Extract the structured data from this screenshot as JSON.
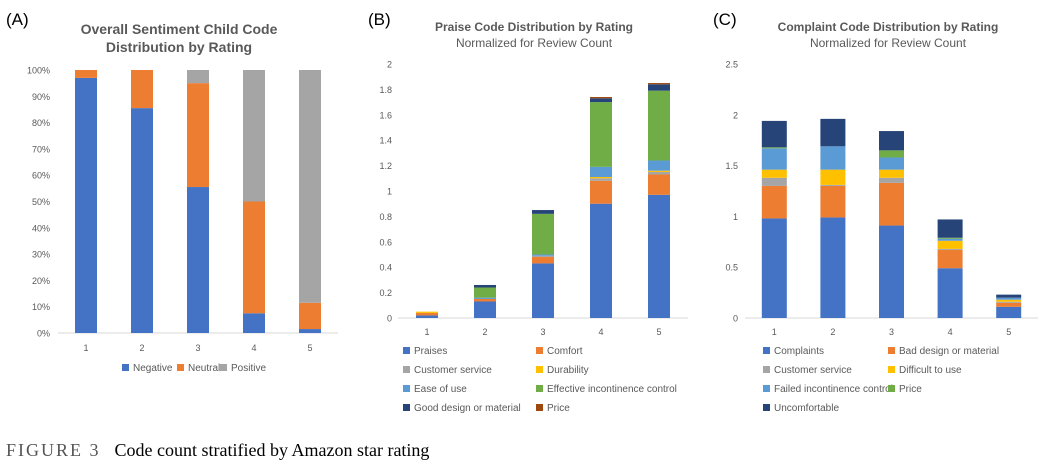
{
  "caption": {
    "figure_label": "FIGURE 3",
    "text": "Code count stratified by Amazon star rating"
  },
  "chart_data": [
    {
      "panel_label": "(A)",
      "type": "bar",
      "stacked": true,
      "title": "Overall Sentiment Child Code",
      "title_line2": "Distribution by Rating",
      "subtitle": "",
      "categories": [
        "1",
        "2",
        "3",
        "4",
        "5"
      ],
      "ylim": [
        0,
        100
      ],
      "yticks": [
        0,
        10,
        20,
        30,
        40,
        50,
        60,
        70,
        80,
        90,
        100
      ],
      "ytick_labels": [
        "0%",
        "10%",
        "20%",
        "30%",
        "40%",
        "50%",
        "60%",
        "70%",
        "80%",
        "90%",
        "100%"
      ],
      "grid": false,
      "legend_position": "bottom",
      "series": [
        {
          "name": "Negative",
          "color": "#4472C4",
          "values": [
            97,
            85.5,
            55.5,
            7.5,
            1.5
          ]
        },
        {
          "name": "Neutral",
          "color": "#ED7D31",
          "values": [
            3,
            14.5,
            39.5,
            42.5,
            10
          ]
        },
        {
          "name": "Positive",
          "color": "#A5A5A5",
          "values": [
            0,
            0,
            5,
            50,
            88.5
          ]
        }
      ]
    },
    {
      "panel_label": "(B)",
      "type": "bar",
      "stacked": true,
      "title": "Praise Code Distribution by Rating",
      "subtitle": "Normalized for Review Count",
      "categories": [
        "1",
        "2",
        "3",
        "4",
        "5"
      ],
      "ylim": [
        0,
        2
      ],
      "yticks": [
        0,
        0.2,
        0.4,
        0.6,
        0.8,
        1,
        1.2,
        1.4,
        1.6,
        1.8,
        2
      ],
      "ytick_labels": [
        "0",
        "0.2",
        "0.4",
        "0.6",
        "0.8",
        "1",
        "1.2",
        "1.4",
        "1.6",
        "1.8",
        "2"
      ],
      "grid": false,
      "legend_position": "bottom",
      "series": [
        {
          "name": "Praises",
          "color": "#4472C4",
          "values": [
            0.02,
            0.13,
            0.43,
            0.9,
            0.97
          ]
        },
        {
          "name": "Comfort",
          "color": "#ED7D31",
          "values": [
            0.02,
            0.02,
            0.05,
            0.18,
            0.16
          ]
        },
        {
          "name": "Customer service",
          "color": "#A5A5A5",
          "values": [
            0,
            0,
            0.01,
            0.02,
            0.02
          ]
        },
        {
          "name": "Durability",
          "color": "#FFC000",
          "values": [
            0.01,
            0,
            0,
            0.01,
            0.01
          ]
        },
        {
          "name": "Ease of use",
          "color": "#5B9BD5",
          "values": [
            0,
            0.01,
            0.01,
            0.08,
            0.08
          ]
        },
        {
          "name": "Effective incontinence control",
          "color": "#70AD47",
          "values": [
            0,
            0.08,
            0.32,
            0.51,
            0.55
          ]
        },
        {
          "name": "Good design or material",
          "color": "#264478",
          "values": [
            0,
            0.02,
            0.03,
            0.03,
            0.05
          ]
        },
        {
          "name": "Price",
          "color": "#9E480E",
          "values": [
            0,
            0,
            0,
            0.01,
            0.01
          ]
        }
      ]
    },
    {
      "panel_label": "(C)",
      "type": "bar",
      "stacked": true,
      "title": "Complaint Code Distribution by Rating",
      "subtitle": "Normalized for Review Count",
      "categories": [
        "1",
        "2",
        "3",
        "4",
        "5"
      ],
      "ylim": [
        0,
        2.5
      ],
      "yticks": [
        0,
        0.5,
        1,
        1.5,
        2,
        2.5
      ],
      "ytick_labels": [
        "0",
        "0.5",
        "1",
        "1.5",
        "2",
        "2.5"
      ],
      "grid": false,
      "legend_position": "bottom",
      "series": [
        {
          "name": "Complaints",
          "color": "#4472C4",
          "values": [
            0.98,
            0.99,
            0.91,
            0.49,
            0.11
          ]
        },
        {
          "name": "Bad design or material",
          "color": "#ED7D31",
          "values": [
            0.32,
            0.31,
            0.42,
            0.18,
            0.04
          ]
        },
        {
          "name": "Customer service",
          "color": "#A5A5A5",
          "values": [
            0.08,
            0.01,
            0.05,
            0.01,
            0.01
          ]
        },
        {
          "name": "Difficult to use",
          "color": "#FFC000",
          "values": [
            0.08,
            0.15,
            0.08,
            0.08,
            0.02
          ]
        },
        {
          "name": "Failed incontinence control",
          "color": "#5B9BD5",
          "values": [
            0.21,
            0.23,
            0.12,
            0.02,
            0.02
          ]
        },
        {
          "name": "Price",
          "color": "#70AD47",
          "values": [
            0.01,
            0,
            0.07,
            0.01,
            0
          ]
        },
        {
          "name": "Uncomfortable",
          "color": "#264478",
          "values": [
            0.26,
            0.27,
            0.19,
            0.18,
            0.03
          ]
        }
      ]
    }
  ]
}
